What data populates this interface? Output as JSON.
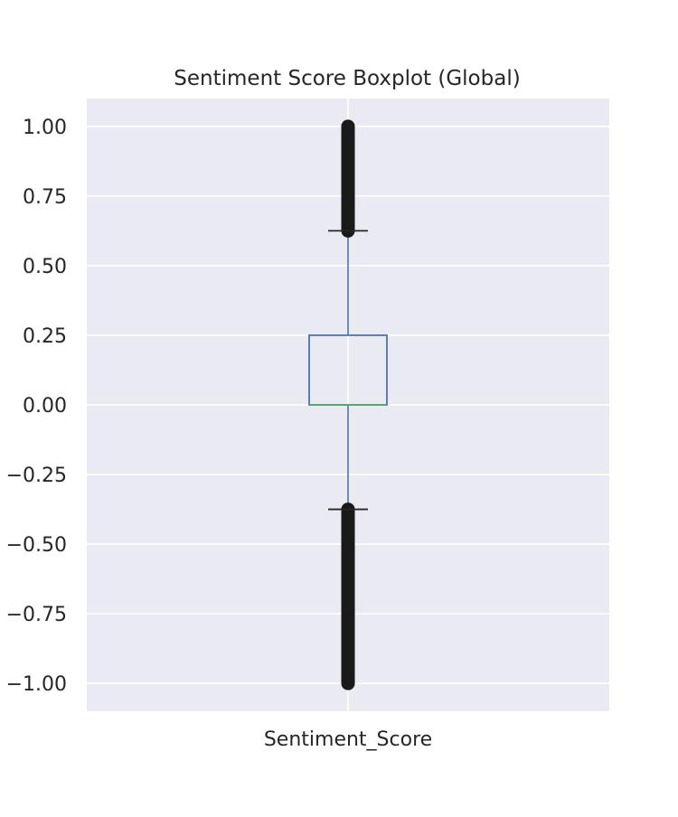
{
  "chart_data": {
    "type": "boxplot",
    "title": "Sentiment Score Boxplot (Global)",
    "categories": [
      "Sentiment_Score"
    ],
    "xlabel": "",
    "ylabel": "",
    "ylim": [
      -1.1,
      1.1
    ],
    "y_ticks": [
      1.0,
      0.75,
      0.5,
      0.25,
      0.0,
      -0.25,
      -0.5,
      -0.75,
      -1.0
    ],
    "y_tick_labels": [
      "1.00",
      "0.75",
      "0.50",
      "0.25",
      "0.00",
      "−0.25",
      "−0.50",
      "−0.75",
      "−1.00"
    ],
    "grid": true,
    "box": {
      "min_whisker": -0.375,
      "q1": 0.0,
      "median": 0.0,
      "q3": 0.25,
      "max_whisker": 0.625
    },
    "outliers": {
      "lower_range": [
        -1.0,
        -0.375
      ],
      "upper_range": [
        0.625,
        1.0
      ]
    },
    "colors": {
      "background": "#eaeaf2",
      "grid": "#ffffff",
      "box": "#4c72b0",
      "median": "#55a868",
      "whisker_cap": "#262626",
      "outlier": "#1a1a1a",
      "text": "#262626"
    }
  }
}
